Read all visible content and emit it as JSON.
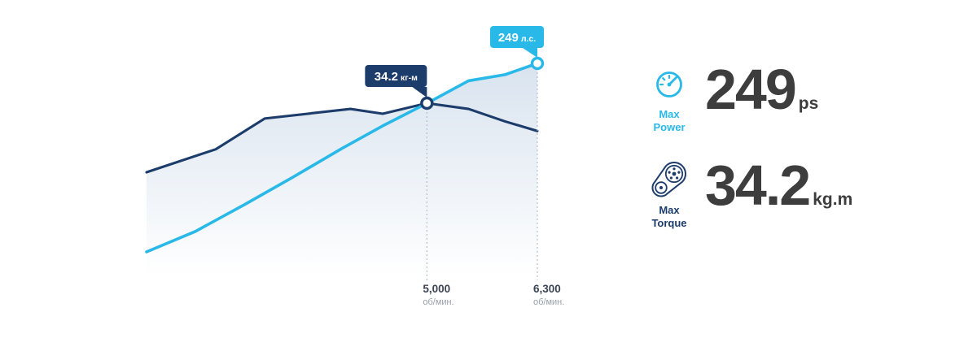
{
  "colors": {
    "cyan": "#29b9e8",
    "navy": "#1c3c6b",
    "number": "#3d3d3d"
  },
  "chart_data": {
    "type": "line",
    "x_unit": "об/мин",
    "x_ticks": [
      "5,000",
      "6,300"
    ],
    "legend_position": "none",
    "grid": false,
    "series": [
      {
        "name": "power",
        "label": "Power (л.с.)",
        "color": "#29b9e8",
        "points": [
          [
            1700,
            65
          ],
          [
            2275,
            85
          ],
          [
            2850,
            111
          ],
          [
            3425,
            138
          ],
          [
            4000,
            166
          ],
          [
            4480,
            188
          ],
          [
            5000,
            210
          ],
          [
            5490,
            232
          ],
          [
            5920,
            238
          ],
          [
            6300,
            249
          ]
        ]
      },
      {
        "name": "torque",
        "label": "Torque (кг-м)",
        "color": "#1c3c6b",
        "points": [
          [
            1700,
            27
          ],
          [
            2515,
            29.4
          ],
          [
            3090,
            32.6
          ],
          [
            4100,
            33.6
          ],
          [
            4480,
            33.1
          ],
          [
            5000,
            34.2
          ],
          [
            5490,
            33.6
          ],
          [
            5920,
            32.3
          ],
          [
            6300,
            31.3
          ]
        ]
      }
    ],
    "annotations": {
      "power_peak": {
        "rpm": 6300,
        "value": 249,
        "label": "249",
        "unit": "л.с.",
        "tick": "6,300",
        "tick_unit": "об/мин."
      },
      "torque_peak": {
        "rpm": 5000,
        "value": 34.2,
        "label": "34.2",
        "unit": "кг-м",
        "tick": "5,000",
        "tick_unit": "об/мин."
      }
    }
  },
  "stats": {
    "power": {
      "label": "Max Power",
      "value": "249",
      "unit": "ps"
    },
    "torque": {
      "label": "Max Torque",
      "value": "34.2",
      "unit": "kg.m"
    }
  }
}
